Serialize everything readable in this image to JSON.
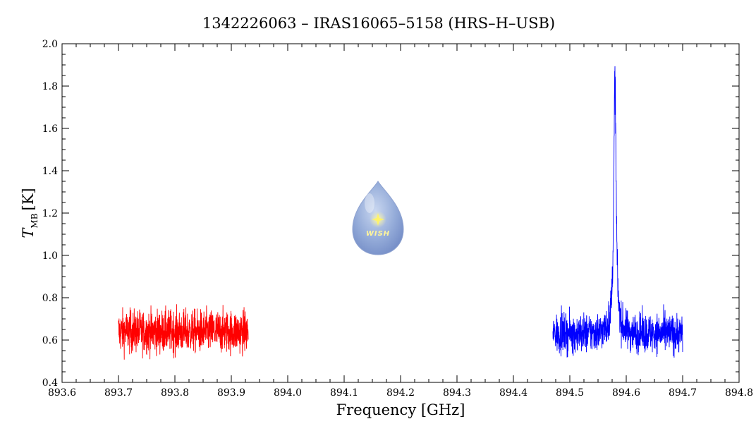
{
  "chart_data": {
    "type": "line",
    "title": "1342226063 – IRAS16065–5158 (HRS–H–USB)",
    "xlabel": "Frequency [GHz]",
    "ylabel_main": "T",
    "ylabel_sub": "MB",
    "ylabel_unit": "[K]",
    "xlim": [
      893.6,
      894.8
    ],
    "ylim": [
      0.4,
      2.0
    ],
    "x_ticks": [
      893.6,
      893.7,
      893.8,
      893.9,
      894.0,
      894.1,
      894.2,
      894.3,
      894.4,
      894.5,
      894.6,
      894.7,
      894.8
    ],
    "x_tick_labels": [
      "893.6",
      "893.7",
      "893.8",
      "893.9",
      "894.0",
      "894.1",
      "894.2",
      "894.3",
      "894.4",
      "894.5",
      "894.6",
      "894.7",
      "894.8"
    ],
    "y_ticks": [
      0.4,
      0.6,
      0.8,
      1.0,
      1.2,
      1.4,
      1.6,
      1.8,
      2.0
    ],
    "y_tick_labels": [
      "0.4",
      "0.6",
      "0.8",
      "1.0",
      "1.2",
      "1.4",
      "1.6",
      "1.8",
      "2.0"
    ],
    "grid": false,
    "legend": "none",
    "logo_text": "WISH",
    "series": [
      {
        "color": "#ff0000",
        "x_range": [
          893.7,
          893.93
        ],
        "baseline": 0.64,
        "noise": 0.05,
        "min": 0.48,
        "max": 0.84
      },
      {
        "color": "#0000ff",
        "x_range": [
          894.47,
          894.7
        ],
        "baseline": 0.63,
        "noise": 0.045,
        "min": 0.47,
        "peak_x": 894.58,
        "peak_y": 1.9,
        "peak_width": 0.0025
      }
    ]
  }
}
